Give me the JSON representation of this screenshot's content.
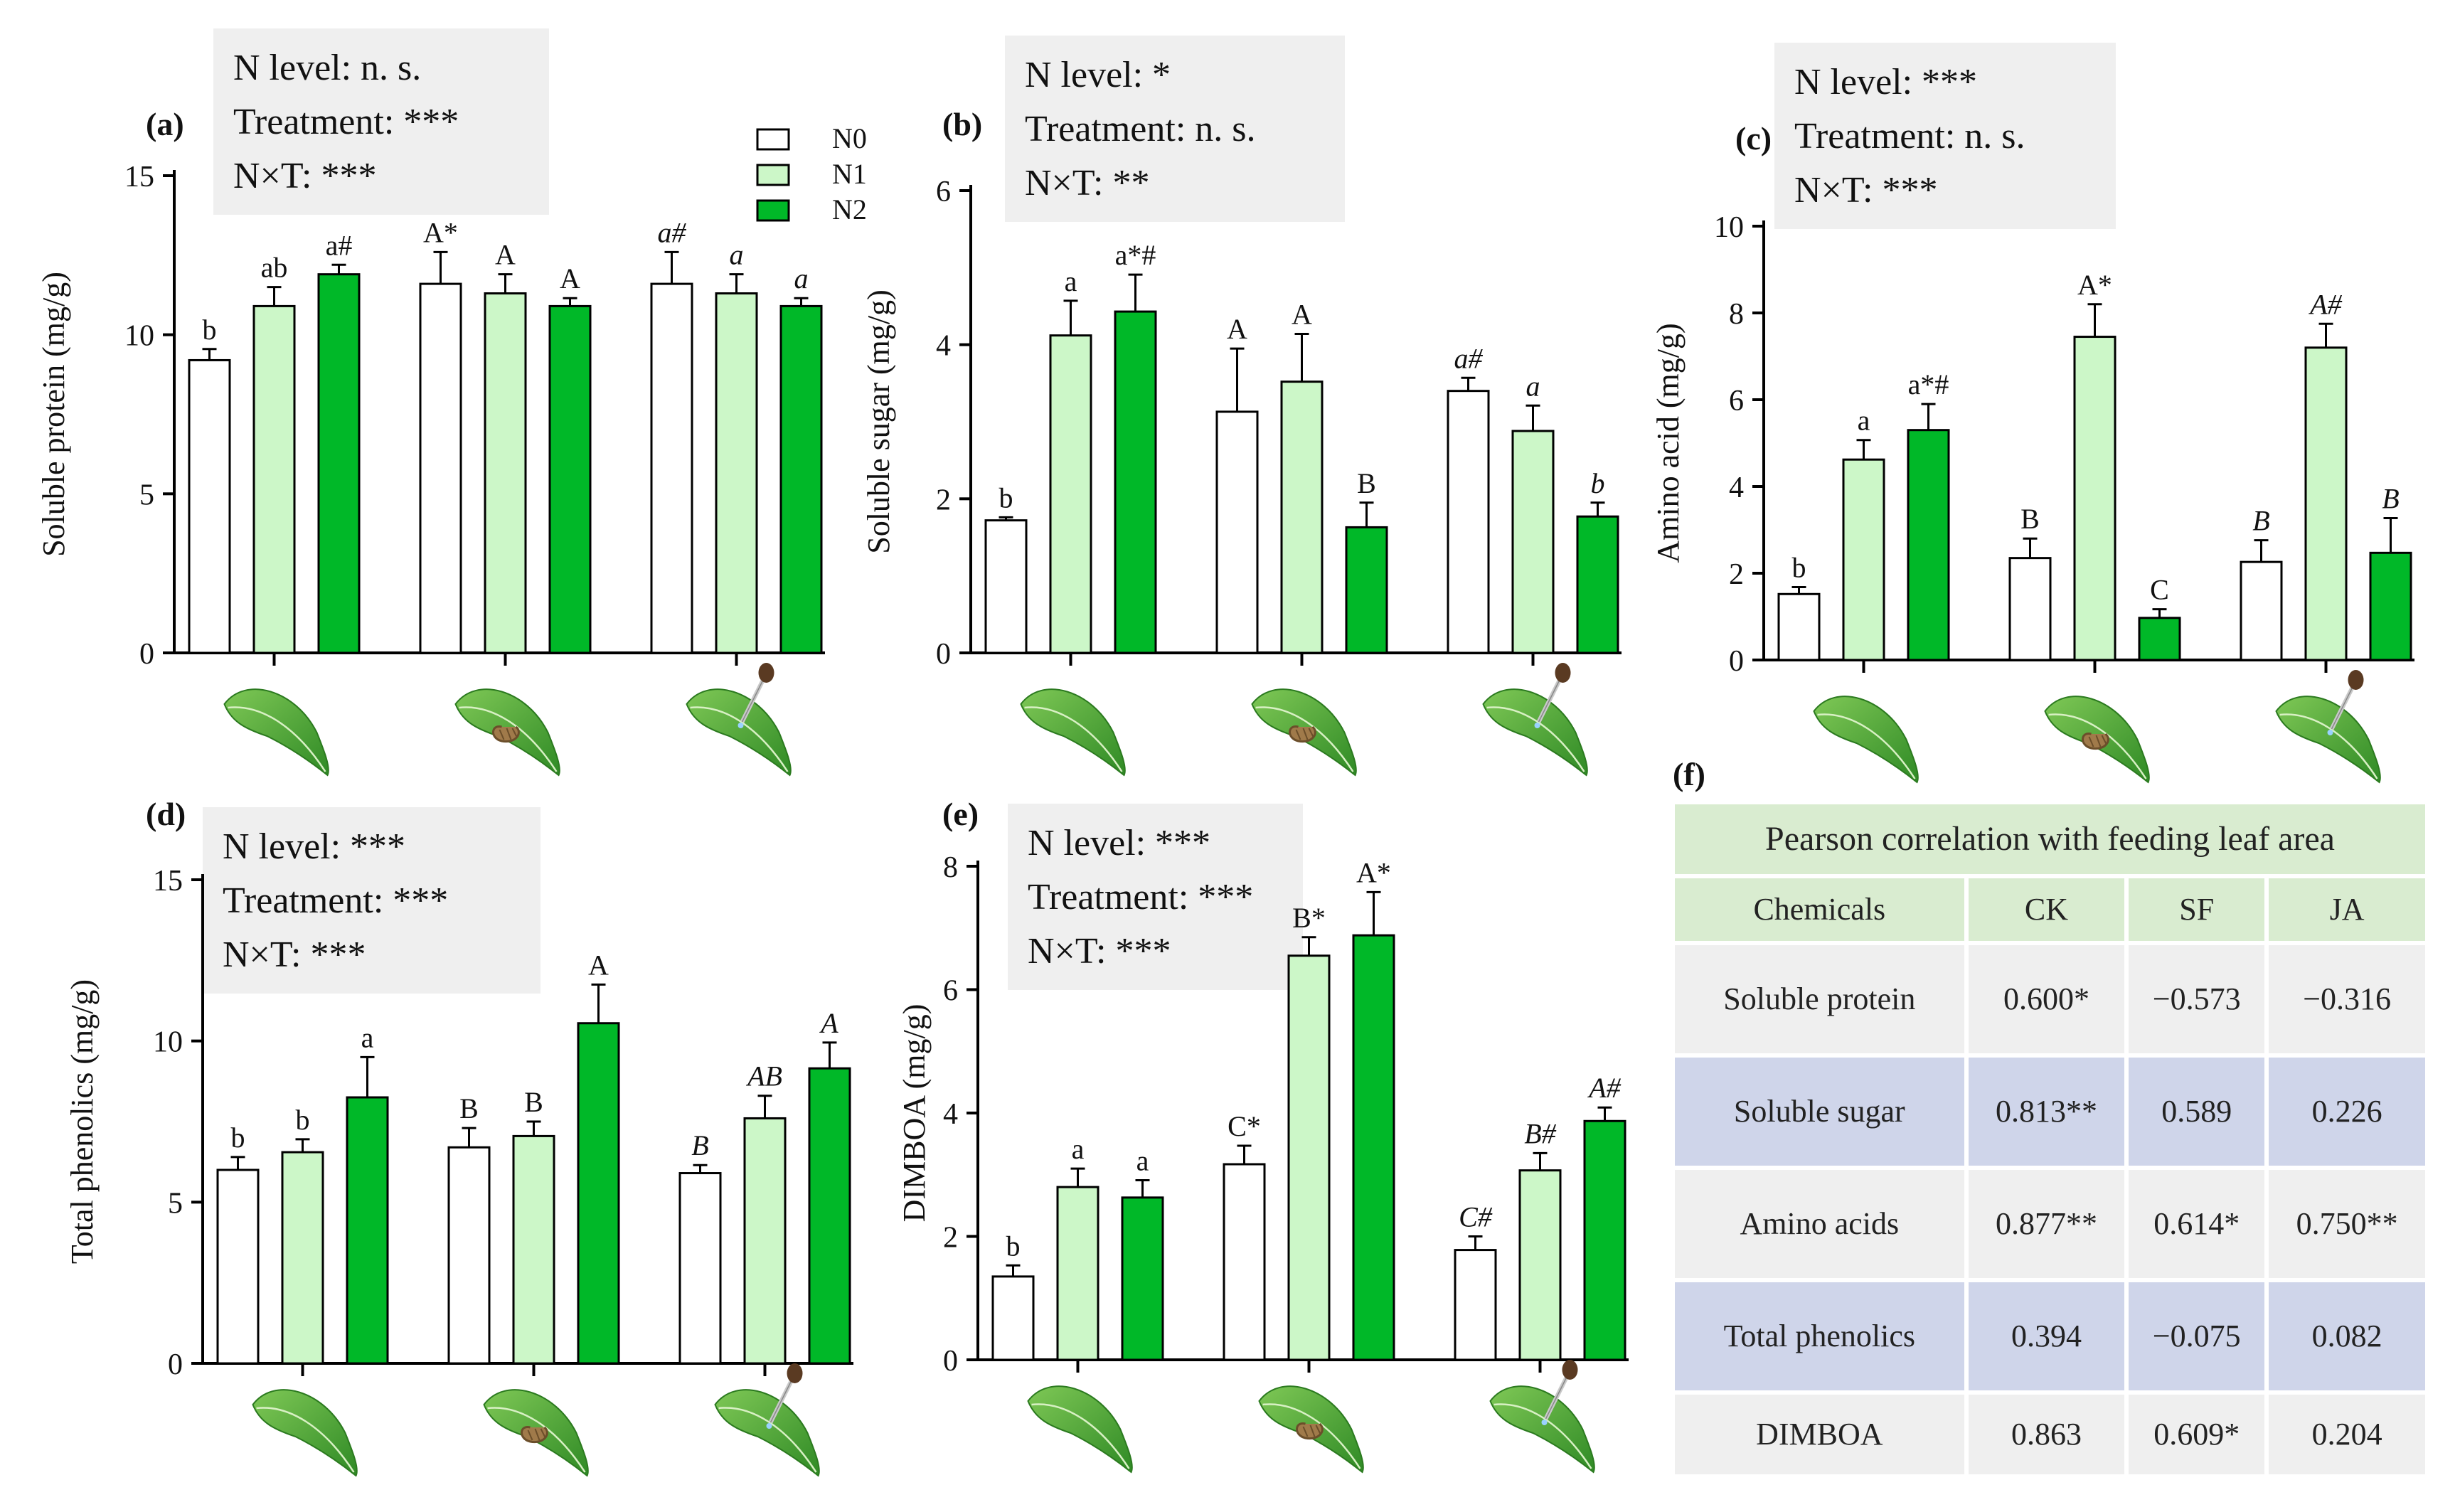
{
  "colors": {
    "N0": "#ffffff",
    "N1": "#ccf7c8",
    "N2": "#00b828",
    "stats_box": "#efefef",
    "leaf": "#3f9a2e",
    "table_header": "#d9ecd0",
    "table_band": "#cfd5ea"
  },
  "legend": [
    "N0",
    "N1",
    "N2"
  ],
  "chart_data": [
    {
      "panel": "(a)",
      "type": "bar",
      "ylabel": "Soluble protein  (mg/g)",
      "ylim": [
        0,
        15
      ],
      "yticks": [
        "0",
        "5",
        "10",
        "15"
      ],
      "stats": [
        "N level: n. s.",
        "Treatment: ***",
        "N×T: ***"
      ],
      "groups": [
        "CK",
        "SF",
        "JA"
      ],
      "series_names": [
        "N0",
        "N1",
        "N2"
      ],
      "values": [
        [
          9.2,
          10.9,
          11.9
        ],
        [
          11.6,
          11.3,
          10.9
        ],
        [
          11.6,
          11.3,
          10.9
        ]
      ],
      "errors": [
        [
          0.35,
          0.6,
          0.3
        ],
        [
          1.0,
          0.6,
          0.25
        ],
        [
          1.0,
          0.6,
          0.25
        ]
      ],
      "labels": [
        [
          "b",
          "ab",
          "a#"
        ],
        [
          "A*",
          "A",
          "A"
        ],
        [
          "a#",
          "a",
          "a"
        ]
      ]
    },
    {
      "panel": "(b)",
      "type": "bar",
      "ylabel": "Soluble sugar (mg/g)",
      "ylim": [
        0,
        6
      ],
      "yticks": [
        "0",
        "2",
        "4",
        "6"
      ],
      "stats": [
        "N level: *",
        "Treatment: n. s.",
        "N×T: **"
      ],
      "groups": [
        "CK",
        "SF",
        "JA"
      ],
      "series_names": [
        "N0",
        "N1",
        "N2"
      ],
      "values": [
        [
          1.72,
          4.12,
          4.43
        ],
        [
          3.13,
          3.52,
          1.63
        ],
        [
          3.4,
          2.88,
          1.77
        ]
      ],
      "errors": [
        [
          0.04,
          0.45,
          0.48
        ],
        [
          0.82,
          0.62,
          0.32
        ],
        [
          0.17,
          0.33,
          0.18
        ]
      ],
      "labels": [
        [
          "b",
          "a",
          "a*#"
        ],
        [
          "A",
          "A",
          "B"
        ],
        [
          "a#",
          "a",
          "b"
        ]
      ]
    },
    {
      "panel": "(c)",
      "type": "bar",
      "ylabel": "Amino acid (mg/g)",
      "ylim": [
        0,
        10
      ],
      "yticks": [
        "0",
        "2",
        "4",
        "6",
        "8",
        "10"
      ],
      "stats": [
        "N level: ***",
        "Treatment: n. s.",
        "N×T: ***"
      ],
      "groups": [
        "CK",
        "SF",
        "JA"
      ],
      "series_names": [
        "N0",
        "N1",
        "N2"
      ],
      "values": [
        [
          1.52,
          4.62,
          5.3
        ],
        [
          2.35,
          7.45,
          0.97
        ],
        [
          2.26,
          7.2,
          2.47
        ]
      ],
      "errors": [
        [
          0.16,
          0.45,
          0.6
        ],
        [
          0.45,
          0.75,
          0.2
        ],
        [
          0.5,
          0.55,
          0.8
        ]
      ],
      "labels": [
        [
          "b",
          "a",
          "a*#"
        ],
        [
          "B",
          "A*",
          "C"
        ],
        [
          "B",
          "A#",
          "B"
        ]
      ]
    },
    {
      "panel": "(d)",
      "type": "bar",
      "ylabel": "Total phenolics (mg/g)",
      "ylim": [
        0,
        15
      ],
      "yticks": [
        "0",
        "5",
        "10",
        "15"
      ],
      "stats": [
        "N level: ***",
        "Treatment: ***",
        "N×T: ***"
      ],
      "groups": [
        "CK",
        "SF",
        "JA"
      ],
      "series_names": [
        "N0",
        "N1",
        "N2"
      ],
      "values": [
        [
          6.0,
          6.55,
          8.25
        ],
        [
          6.7,
          7.05,
          10.55
        ],
        [
          5.9,
          7.6,
          9.15
        ]
      ],
      "errors": [
        [
          0.4,
          0.4,
          1.25
        ],
        [
          0.6,
          0.45,
          1.2
        ],
        [
          0.25,
          0.7,
          0.8
        ]
      ],
      "labels": [
        [
          "b",
          "b",
          "a"
        ],
        [
          "B",
          "B",
          "A"
        ],
        [
          "B",
          "AB",
          "A"
        ]
      ]
    },
    {
      "panel": "(e)",
      "type": "bar",
      "ylabel": "DIMBOA (mg/g)",
      "ylim": [
        0,
        8
      ],
      "yticks": [
        "0",
        "2",
        "4",
        "6",
        "8"
      ],
      "stats": [
        "N level: ***",
        "Treatment: ***",
        "N×T: ***"
      ],
      "groups": [
        "CK",
        "SF",
        "JA"
      ],
      "series_names": [
        "N0",
        "N1",
        "N2"
      ],
      "values": [
        [
          1.35,
          2.8,
          2.63
        ],
        [
          3.17,
          6.55,
          6.88
        ],
        [
          1.78,
          3.07,
          3.87
        ]
      ],
      "errors": [
        [
          0.18,
          0.3,
          0.28
        ],
        [
          0.3,
          0.3,
          0.7
        ],
        [
          0.22,
          0.28,
          0.22
        ]
      ],
      "labels": [
        [
          "b",
          "a",
          "a"
        ],
        [
          "C*",
          "B*",
          "A*"
        ],
        [
          "C#",
          "B#",
          "A#"
        ]
      ]
    }
  ],
  "table": {
    "panel_label": "(f)",
    "title": "Pearson correlation  with feeding leaf area",
    "header": [
      "Chemicals",
      "CK",
      "SF",
      "JA"
    ],
    "rows": [
      [
        "Soluble protein",
        "0.600*",
        "−0.573",
        "−0.316"
      ],
      [
        "Soluble sugar",
        "0.813**",
        "0.589",
        "0.226"
      ],
      [
        "Amino acids",
        "0.877**",
        "0.614*",
        "0.750**"
      ],
      [
        "Total phenolics",
        "0.394",
        "−0.075",
        "0.082"
      ],
      [
        "DIMBOA",
        "0.863",
        "0.609*",
        "0.204"
      ]
    ]
  }
}
